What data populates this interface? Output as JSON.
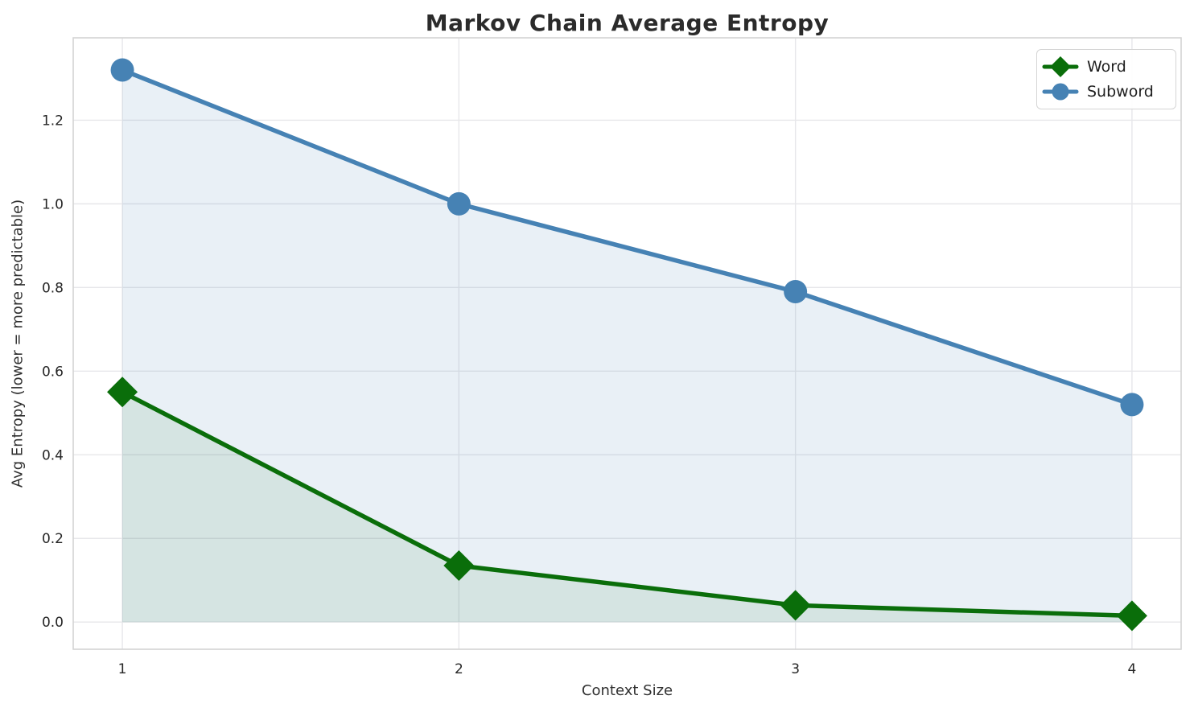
{
  "title": "Markov Chain Average Entropy",
  "chart_data": {
    "type": "line",
    "title": "Markov Chain Average Entropy",
    "xlabel": "Context Size",
    "ylabel": "Avg Entropy (lower = more predictable)",
    "x": [
      1,
      2,
      3,
      4
    ],
    "series": [
      {
        "name": "Word",
        "values": [
          0.55,
          0.135,
          0.04,
          0.015
        ],
        "color": "#0a6e0a",
        "fill_color": "rgba(10, 110, 10, 0.09)",
        "marker": "diamond"
      },
      {
        "name": "Subword",
        "values": [
          1.32,
          1.0,
          0.79,
          0.52
        ],
        "color": "#4682b4",
        "fill_color": "rgba(70, 130, 180, 0.12)",
        "marker": "circle"
      }
    ],
    "fill_baseline": 0,
    "xticks": [
      1,
      2,
      3,
      4
    ],
    "yticks": [
      0.0,
      0.2,
      0.4,
      0.6,
      0.8,
      1.0,
      1.2
    ],
    "xlim": [
      0.854,
      4.146
    ],
    "ylim": [
      -0.065,
      1.397
    ],
    "grid": true,
    "grid_color": "#e7e7ea",
    "spine_color": "#d4d4d4",
    "legend_position": "upper right",
    "legend": [
      "Word",
      "Subword"
    ]
  }
}
